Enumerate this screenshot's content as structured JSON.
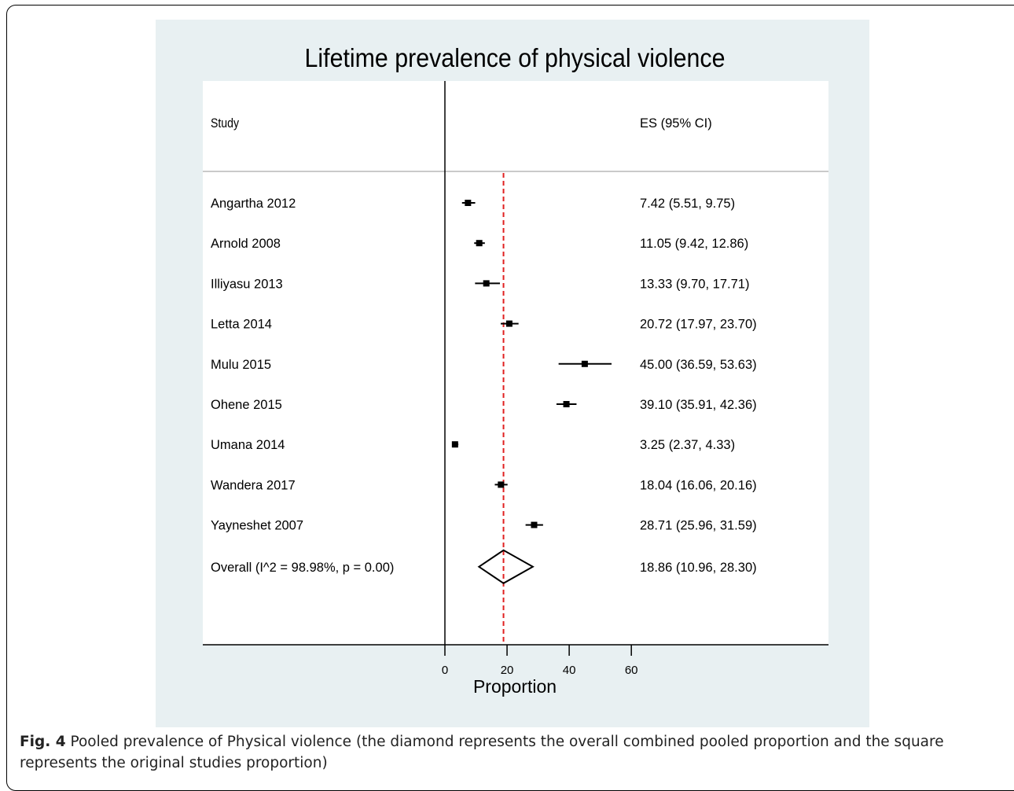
{
  "chart_data": {
    "type": "forest",
    "title": "Lifetime prevalence of physical violence",
    "xlabel": "Proportion",
    "study_header": "Study",
    "es_header": "ES (95% CI)",
    "x_ticks": [
      0,
      20,
      40,
      60
    ],
    "xlim": [
      0,
      60
    ],
    "pooled_line": 18.86,
    "studies": [
      {
        "name": "Angartha 2012",
        "es": 7.42,
        "lo": 5.51,
        "hi": 9.75,
        "label": "7.42 (5.51, 9.75)"
      },
      {
        "name": "Arnold 2008",
        "es": 11.05,
        "lo": 9.42,
        "hi": 12.86,
        "label": "11.05 (9.42, 12.86)"
      },
      {
        "name": "Illiyasu 2013",
        "es": 13.33,
        "lo": 9.7,
        "hi": 17.71,
        "label": "13.33 (9.70, 17.71)"
      },
      {
        "name": "Letta 2014",
        "es": 20.72,
        "lo": 17.97,
        "hi": 23.7,
        "label": "20.72 (17.97, 23.70)"
      },
      {
        "name": "Mulu 2015",
        "es": 45.0,
        "lo": 36.59,
        "hi": 53.63,
        "label": "45.00 (36.59, 53.63)"
      },
      {
        "name": "Ohene 2015",
        "es": 39.1,
        "lo": 35.91,
        "hi": 42.36,
        "label": "39.10 (35.91, 42.36)"
      },
      {
        "name": "Umana 2014",
        "es": 3.25,
        "lo": 2.37,
        "hi": 4.33,
        "label": "3.25 (2.37, 4.33)"
      },
      {
        "name": "Wandera 2017",
        "es": 18.04,
        "lo": 16.06,
        "hi": 20.16,
        "label": "18.04 (16.06, 20.16)"
      },
      {
        "name": "Yayneshet 2007",
        "es": 28.71,
        "lo": 25.96,
        "hi": 31.59,
        "label": "28.71 (25.96, 31.59)"
      }
    ],
    "overall": {
      "name": "Overall  (I^2 = 98.98%, p = 0.00)",
      "es": 18.86,
      "lo": 10.96,
      "hi": 28.3,
      "label": "18.86 (10.96, 28.30)"
    },
    "colors": {
      "pooled_line": "#e02020",
      "marker": "#000000",
      "background": "#e8f0f2"
    }
  },
  "caption": {
    "prefix": "Fig. 4",
    "text": " Pooled prevalence of Physical violence (the diamond represents the overall combined pooled proportion and the square represents the original studies proportion)"
  }
}
